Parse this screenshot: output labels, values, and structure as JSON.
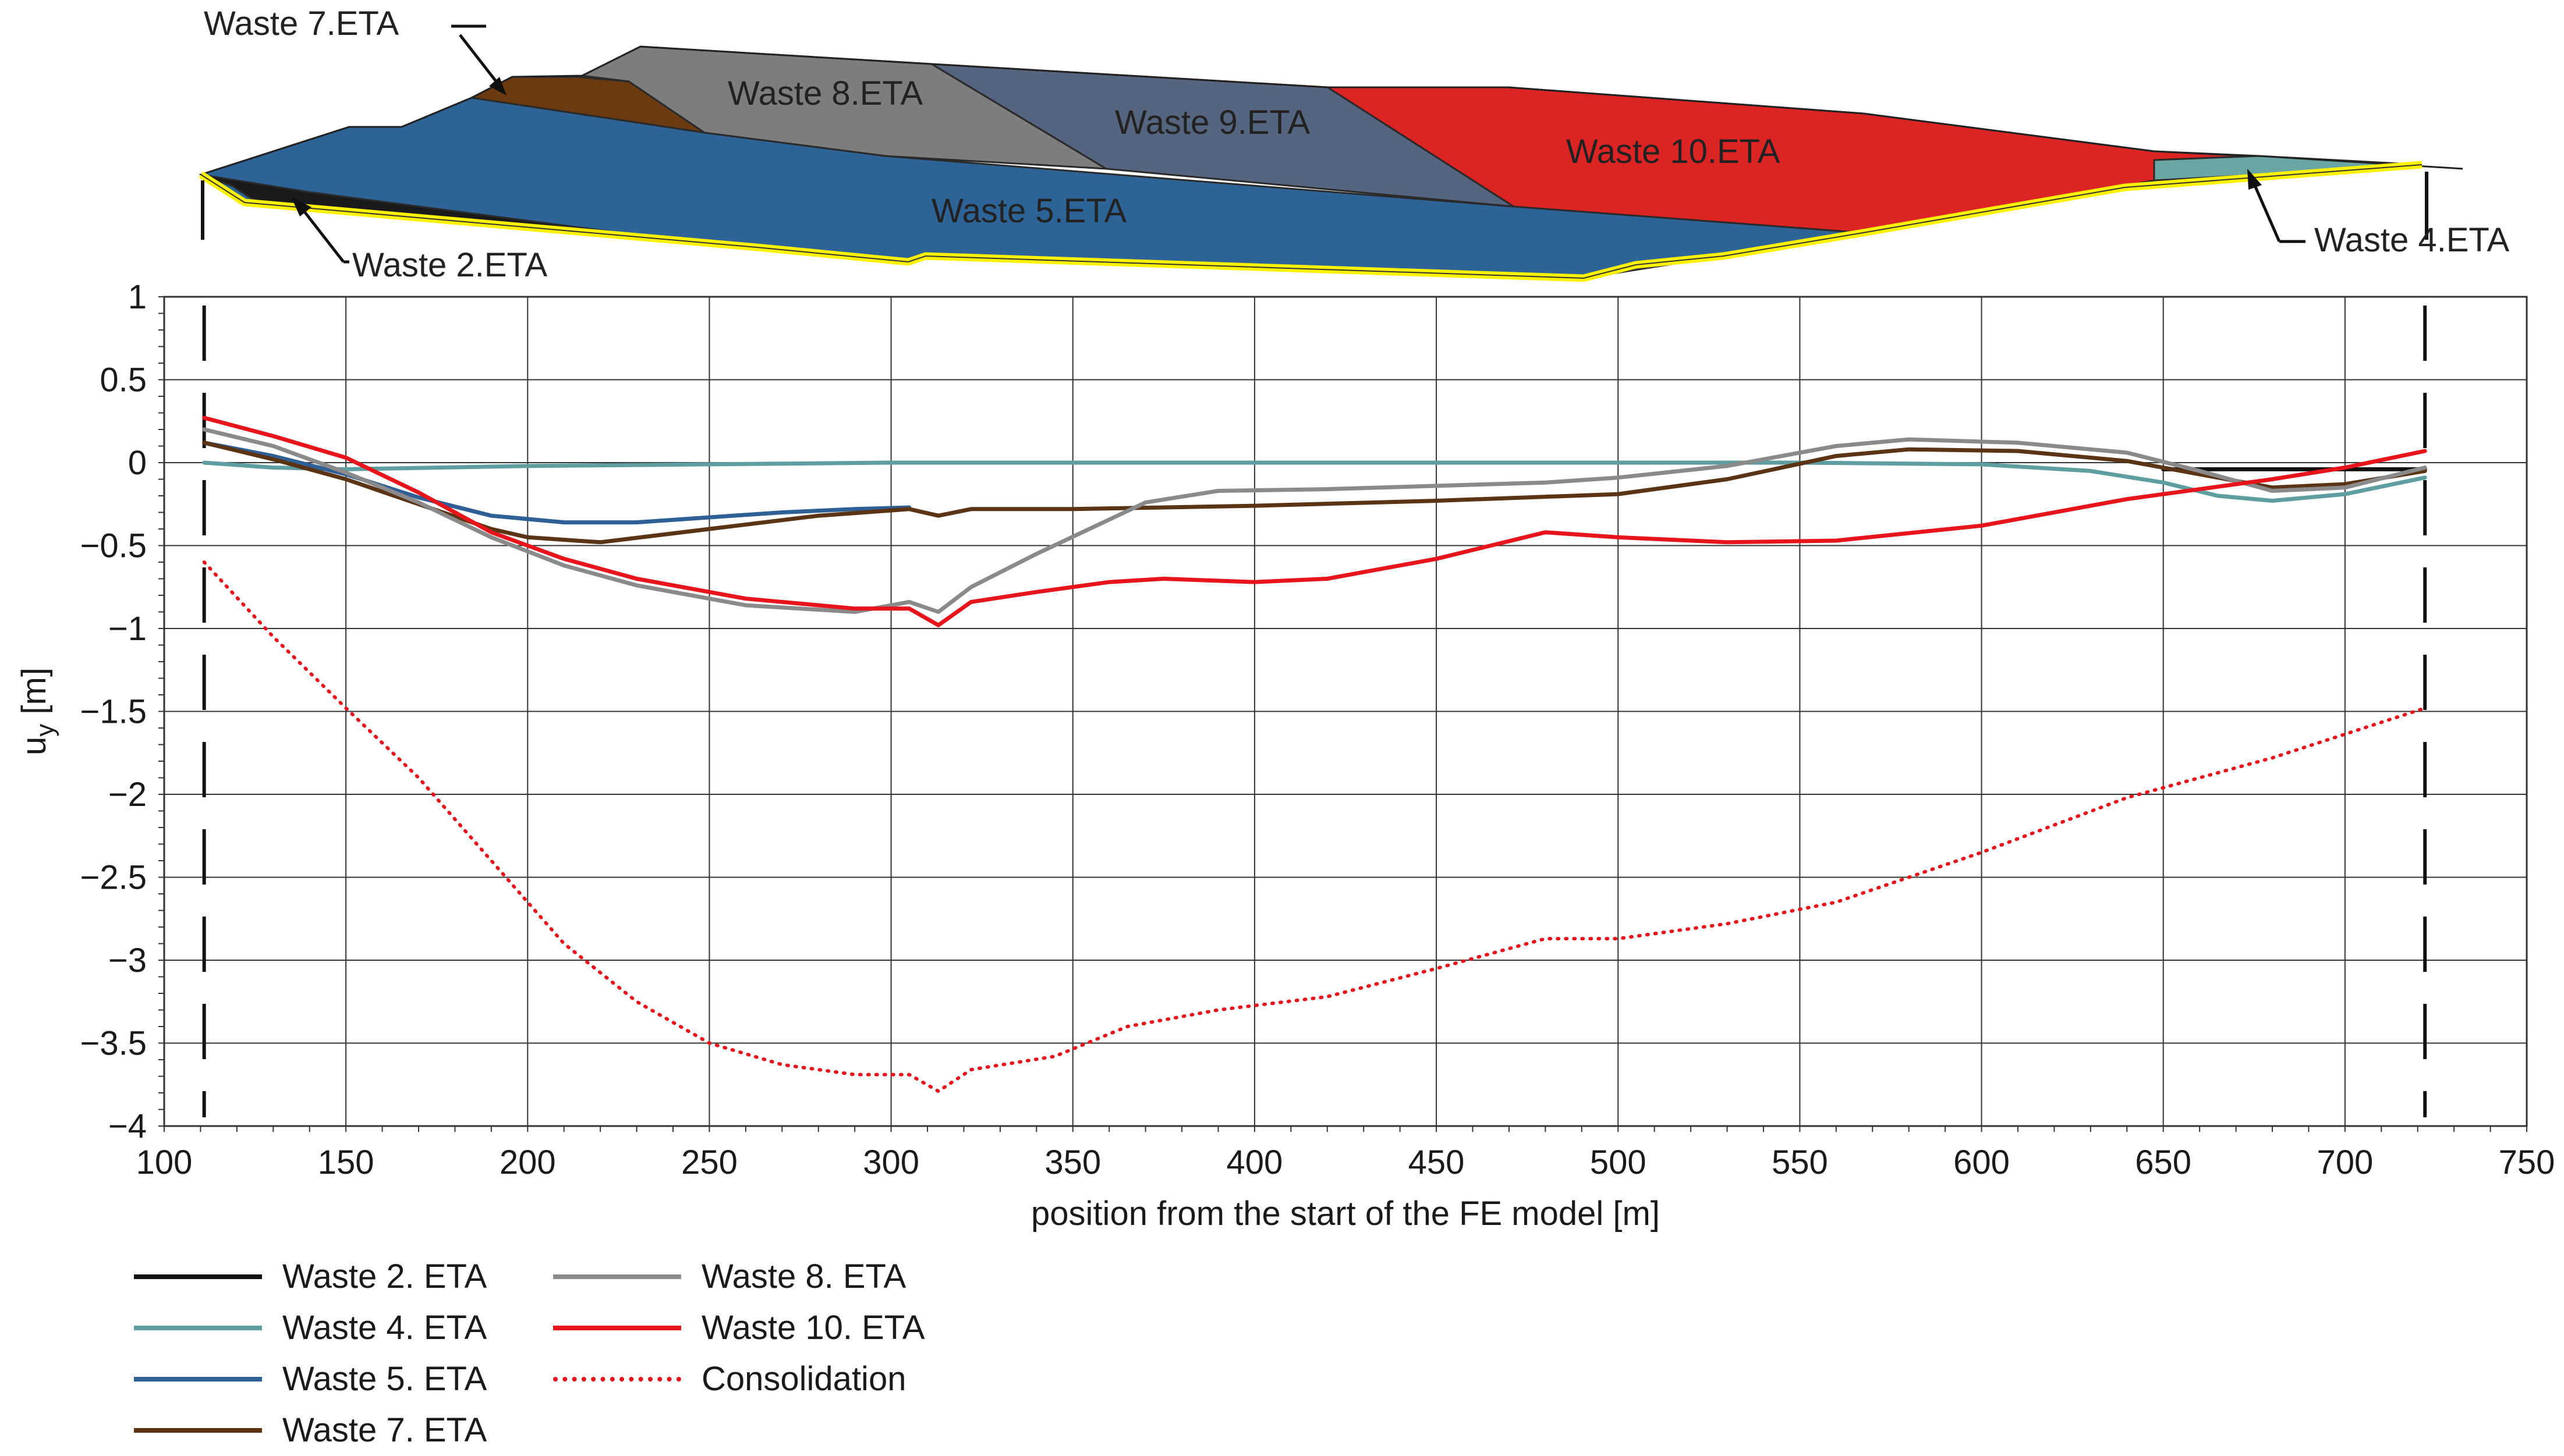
{
  "chart_data": {
    "type": "line",
    "xlabel": "position from the start of the FE model [m]",
    "ylabel_base": "u",
    "ylabel_sub": "y",
    "ylabel_unit": " [m]",
    "xlim": [
      100,
      750
    ],
    "ylim": [
      -4,
      1
    ],
    "x_ticks": [
      100,
      150,
      200,
      250,
      300,
      350,
      400,
      450,
      500,
      550,
      600,
      650,
      700,
      750
    ],
    "y_ticks": [
      1,
      0.5,
      0,
      -0.5,
      -1,
      -1.5,
      -2,
      -2.5,
      -3,
      -3.5,
      -4
    ],
    "y_tick_labels": [
      "1",
      "0.5",
      "0",
      "−0.5",
      "−1",
      "−1.5",
      "−2",
      "−2.5",
      "−3",
      "−3.5",
      "−4"
    ],
    "model_bounds_x": [
      111,
      722
    ],
    "series": [
      {
        "name": "Waste 2. ETA",
        "color": "#111111",
        "dash": "solid",
        "x": [
          650,
          660,
          670,
          680,
          690,
          700,
          710,
          722
        ],
        "y": [
          -0.04,
          -0.04,
          -0.04,
          -0.04,
          -0.04,
          -0.04,
          -0.04,
          -0.04
        ]
      },
      {
        "name": "Waste 4. ETA",
        "color": "#5f9ea0",
        "dash": "solid",
        "x": [
          111,
          130,
          150,
          200,
          250,
          300,
          350,
          400,
          450,
          500,
          550,
          600,
          630,
          650,
          665,
          680,
          700,
          722
        ],
        "y": [
          0.0,
          -0.03,
          -0.04,
          -0.02,
          -0.01,
          0.0,
          0.0,
          0.0,
          0.0,
          0.0,
          0.0,
          -0.01,
          -0.05,
          -0.12,
          -0.2,
          -0.23,
          -0.19,
          -0.09
        ]
      },
      {
        "name": "Waste 5. ETA",
        "color": "#2e5f95",
        "dash": "solid",
        "x": [
          111,
          130,
          150,
          170,
          190,
          210,
          230,
          250,
          270,
          290,
          305
        ],
        "y": [
          0.12,
          0.04,
          -0.07,
          -0.21,
          -0.32,
          -0.36,
          -0.36,
          -0.33,
          -0.3,
          -0.28,
          -0.27
        ]
      },
      {
        "name": "Waste 7. ETA",
        "color": "#5a3414",
        "dash": "solid",
        "x": [
          111,
          130,
          150,
          170,
          190,
          200,
          220,
          250,
          280,
          305,
          313,
          322,
          350,
          400,
          450,
          500,
          530,
          560,
          580,
          610,
          640,
          660,
          680,
          700,
          722
        ],
        "y": [
          0.12,
          0.02,
          -0.1,
          -0.25,
          -0.4,
          -0.45,
          -0.48,
          -0.4,
          -0.32,
          -0.28,
          -0.32,
          -0.28,
          -0.28,
          -0.26,
          -0.23,
          -0.19,
          -0.1,
          0.04,
          0.08,
          0.07,
          0.01,
          -0.07,
          -0.15,
          -0.13,
          -0.05
        ]
      },
      {
        "name": "Waste 8. ETA",
        "color": "#8a8a8a",
        "dash": "solid",
        "x": [
          111,
          130,
          150,
          170,
          190,
          210,
          230,
          260,
          290,
          305,
          313,
          322,
          340,
          370,
          390,
          420,
          450,
          480,
          500,
          530,
          560,
          580,
          610,
          640,
          660,
          680,
          700,
          722
        ],
        "y": [
          0.2,
          0.1,
          -0.06,
          -0.24,
          -0.45,
          -0.62,
          -0.74,
          -0.86,
          -0.9,
          -0.84,
          -0.9,
          -0.75,
          -0.55,
          -0.24,
          -0.17,
          -0.16,
          -0.14,
          -0.12,
          -0.09,
          -0.02,
          0.1,
          0.14,
          0.12,
          0.06,
          -0.05,
          -0.17,
          -0.15,
          -0.03
        ]
      },
      {
        "name": "Waste 10. ETA",
        "color": "#e8141c",
        "dash": "solid",
        "x": [
          111,
          130,
          150,
          170,
          190,
          210,
          230,
          260,
          290,
          305,
          313,
          322,
          340,
          360,
          375,
          400,
          420,
          450,
          480,
          500,
          530,
          560,
          600,
          640,
          680,
          700,
          722
        ],
        "y": [
          0.27,
          0.16,
          0.03,
          -0.18,
          -0.42,
          -0.58,
          -0.7,
          -0.82,
          -0.88,
          -0.88,
          -0.98,
          -0.84,
          -0.78,
          -0.72,
          -0.7,
          -0.72,
          -0.7,
          -0.58,
          -0.42,
          -0.45,
          -0.48,
          -0.47,
          -0.38,
          -0.22,
          -0.1,
          -0.03,
          0.07
        ]
      },
      {
        "name": "Consolidation",
        "color": "#e8141c",
        "dash": "dotted",
        "x": [
          111,
          130,
          150,
          170,
          190,
          210,
          230,
          250,
          270,
          290,
          305,
          313,
          322,
          345,
          365,
          390,
          420,
          450,
          480,
          500,
          530,
          560,
          600,
          640,
          680,
          722
        ],
        "y": [
          -0.6,
          -1.05,
          -1.48,
          -1.9,
          -2.4,
          -2.9,
          -3.25,
          -3.5,
          -3.63,
          -3.69,
          -3.69,
          -3.79,
          -3.66,
          -3.58,
          -3.4,
          -3.3,
          -3.22,
          -3.05,
          -2.87,
          -2.87,
          -2.78,
          -2.65,
          -2.35,
          -2.02,
          -1.78,
          -1.48
        ]
      }
    ]
  },
  "diagram": {
    "labels": {
      "w2": "Waste 2.ETA",
      "w4": "Waste 4.ETA",
      "w5": "Waste 5.ETA",
      "w7": "Waste 7.ETA",
      "w8": "Waste 8.ETA",
      "w9": "Waste 9.ETA",
      "w10": "Waste 10.ETA"
    },
    "colors": {
      "w2": "#1a1a1a",
      "w4": "#69a5a3",
      "w5": "#2d6396",
      "w7": "#6b3a10",
      "w8": "#7d7d7d",
      "w9": "#56657f",
      "w10": "#dd2424",
      "liner": "#fff200"
    }
  },
  "legend": {
    "items": [
      {
        "label": "Waste 2. ETA",
        "color": "#111111",
        "style": "solid"
      },
      {
        "label": "Waste 4. ETA",
        "color": "#5f9ea0",
        "style": "solid"
      },
      {
        "label": "Waste 5. ETA",
        "color": "#2e5f95",
        "style": "solid"
      },
      {
        "label": "Waste 7. ETA",
        "color": "#5a3414",
        "style": "solid"
      },
      {
        "label": "Waste 8. ETA",
        "color": "#8a8a8a",
        "style": "solid"
      },
      {
        "label": "Waste 10. ETA",
        "color": "#e8141c",
        "style": "solid"
      },
      {
        "label": "Consolidation",
        "color": "#e8141c",
        "style": "dotted"
      }
    ]
  }
}
